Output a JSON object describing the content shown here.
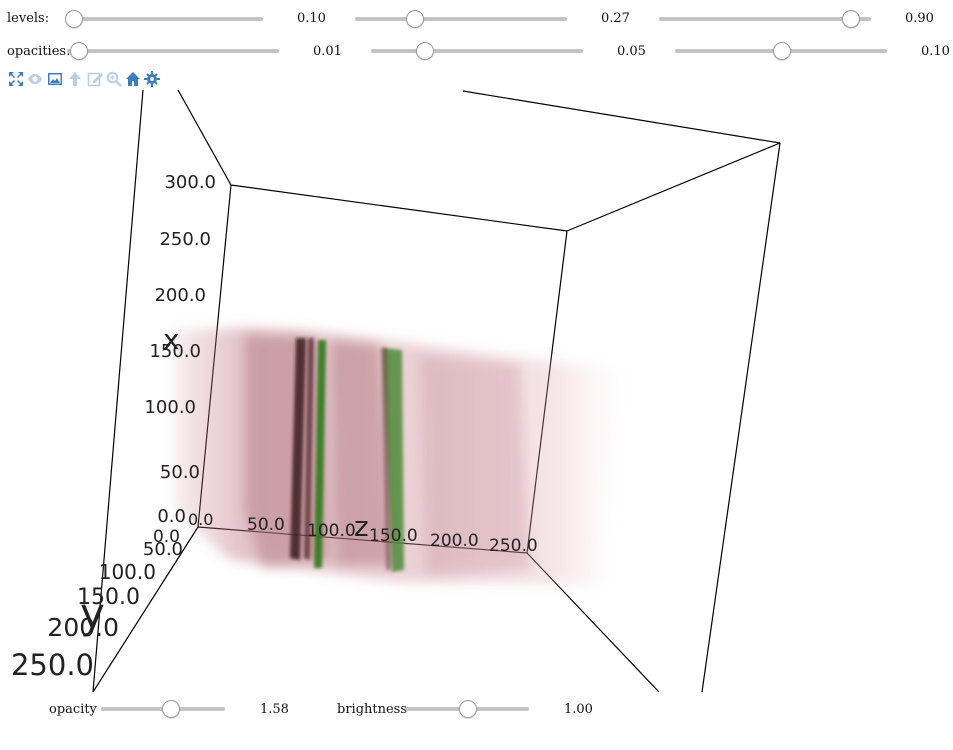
{
  "levels": {
    "label": "levels:",
    "values": [
      "0.10",
      "0.27",
      "0.90"
    ],
    "levels": [
      0.1,
      0.27,
      0.9
    ]
  },
  "opacities": {
    "label": "opacities:",
    "values": [
      "0.01",
      "0.05",
      "0.10"
    ],
    "levels": [
      0.01,
      0.05,
      0.1
    ]
  },
  "toolbar": {
    "icons": [
      "fullscreen-icon",
      "eye-icon",
      "image-icon",
      "arrow-up-icon",
      "edit-icon",
      "zoom-icon",
      "home-icon",
      "gear-icon"
    ]
  },
  "scene": {
    "axis_x": {
      "title": "x",
      "ticks": [
        "0.0",
        "50.0",
        "100.0",
        "150.0",
        "200.0",
        "250.0",
        "300.0"
      ]
    },
    "axis_y": {
      "title": "y",
      "ticks": [
        "0.0",
        "50.0",
        "100.0",
        "150.0",
        "200.0",
        "250.0"
      ]
    },
    "axis_z": {
      "title": "z",
      "ticks": [
        "0.0",
        "50.0",
        "100.0",
        "150.0",
        "200.0",
        "250.0"
      ]
    },
    "colors": {
      "volume": "#b06070",
      "feature": "#3a8a2a",
      "box": "#000000"
    }
  },
  "bottom": {
    "opacity": {
      "label": "opacity",
      "value": "1.58",
      "level": 0.56
    },
    "brightness": {
      "label": "brightness",
      "value": "1.00",
      "level": 0.5
    }
  }
}
